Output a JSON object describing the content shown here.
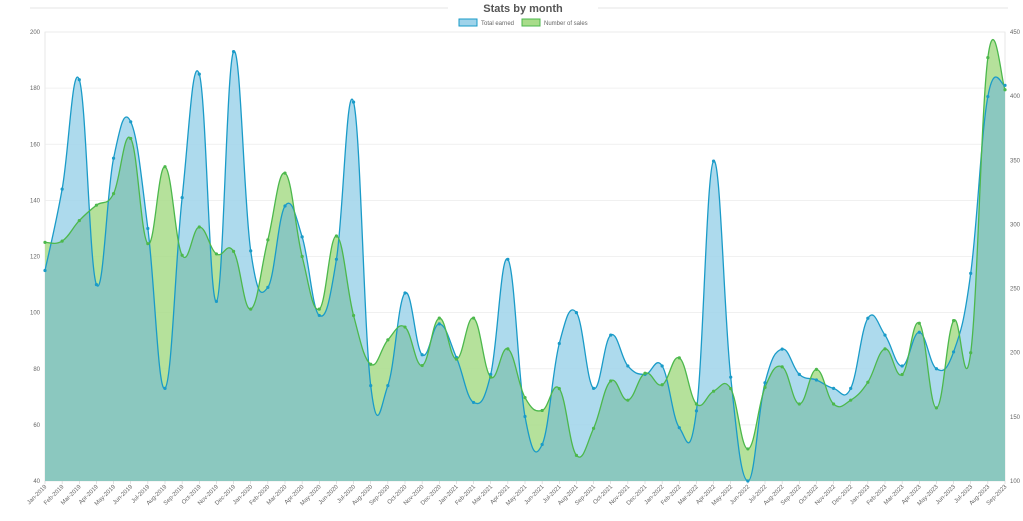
{
  "chart_data": {
    "type": "area",
    "title": "Stats by month",
    "legend_position": "top",
    "grid": true,
    "colors": {
      "total_earned_line": "#1a9bc8",
      "total_earned_fill": "#9fd3ea",
      "number_of_sales_line": "#4cb84c",
      "number_of_sales_fill": "#a8dc8a",
      "overlap_fill": "#8bc8bf"
    },
    "y_left": {
      "min": 40,
      "max": 200,
      "ticks": [
        "40",
        "60",
        "80",
        "100",
        "120",
        "140",
        "160",
        "180",
        "200"
      ]
    },
    "y_right": {
      "min": 100,
      "max": 450,
      "ticks": [
        "100",
        "150",
        "200",
        "250",
        "300",
        "350",
        "400",
        "450"
      ]
    },
    "x_labels": [
      "Jan-2019",
      "Feb-2019",
      "Mar-2019",
      "Apr-2019",
      "May-2019",
      "Jun-2019",
      "Jul-2019",
      "Aug-2019",
      "Sep-2019",
      "Oct-2019",
      "Nov-2019",
      "Dec-2019",
      "Jan-2020",
      "Feb-2020",
      "Mar-2020",
      "Apr-2020",
      "May-2020",
      "Jun-2020",
      "Jul-2020",
      "Aug-2020",
      "Sep-2020",
      "Oct-2020",
      "Nov-2020",
      "Dec-2020",
      "Jan-2021",
      "Feb-2021",
      "Mar-2021",
      "Apr-2021",
      "May-2021",
      "Jun-2021",
      "Jul-2021",
      "Aug-2021",
      "Sep-2021",
      "Oct-2021",
      "Nov-2021",
      "Dec-2021",
      "Jan-2022",
      "Feb-2022",
      "Mar-2022",
      "Apr-2022",
      "May-2022",
      "Jun-2022",
      "Jul-2022",
      "Aug-2022",
      "Sep-2022",
      "Oct-2022",
      "Nov-2022",
      "Dec-2022",
      "Jan-2023",
      "Feb-2023",
      "Mar-2023",
      "Apr-2023",
      "May-2023",
      "Jun-2023",
      "Jul-2023",
      "Aug-2023",
      "Sep-2023"
    ],
    "series": [
      {
        "name": "Total earned",
        "axis": "left",
        "values": [
          115,
          144,
          183,
          110,
          155,
          168,
          130,
          73,
          141,
          185,
          104,
          193,
          122,
          109,
          138,
          127,
          99,
          119,
          175,
          74,
          74,
          107,
          85,
          96,
          84,
          68,
          78,
          119,
          63,
          53,
          89,
          100,
          73,
          92,
          81,
          78,
          81,
          59,
          65,
          154,
          77,
          40,
          75,
          87,
          78,
          76,
          73,
          73,
          98,
          92,
          81,
          93,
          80,
          86,
          114,
          177,
          181
        ]
      },
      {
        "name": "Number of sales",
        "axis": "right",
        "values": [
          286,
          287,
          303,
          315,
          324,
          367,
          285,
          345,
          276,
          298,
          277,
          279,
          234,
          288,
          340,
          275,
          234,
          291,
          229,
          191,
          210,
          220,
          190,
          227,
          195,
          227,
          181,
          203,
          165,
          155,
          172,
          120,
          141,
          178,
          163,
          184,
          175,
          196,
          160,
          170,
          172,
          125,
          173,
          189,
          160,
          187,
          160,
          163,
          177,
          203,
          183,
          223,
          157,
          225,
          200,
          430,
          405
        ]
      }
    ]
  }
}
